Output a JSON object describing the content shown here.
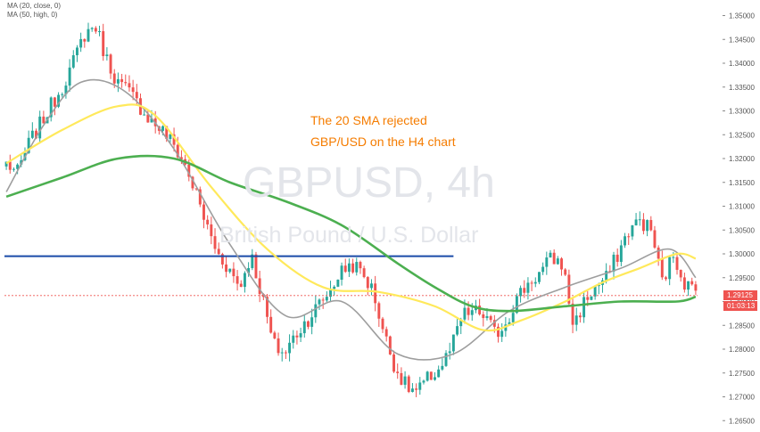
{
  "indicators": [
    "MA (20, close, 0)",
    "MA (50, high, 0)"
  ],
  "watermark": {
    "symbol": "GBPUSD, 4h",
    "name": "British Pound / U.S. Dollar"
  },
  "annotation": {
    "line1": "The 20 SMA rejected",
    "line2": "GBP/USD on the H4 chart"
  },
  "price_badge": {
    "price": "1.29125",
    "countdown": "01:03:13"
  },
  "chart_data": {
    "type": "candlestick",
    "title": "",
    "ylim": [
      1.262,
      1.352
    ],
    "y_ticks": [
      "1.35000",
      "1.34500",
      "1.34000",
      "1.33500",
      "1.33000",
      "1.32500",
      "1.32000",
      "1.31500",
      "1.31000",
      "1.30500",
      "1.30000",
      "1.29500",
      "1.29000",
      "1.28500",
      "1.28000",
      "1.27500",
      "1.27000",
      "1.26500"
    ],
    "y_tick_values": [
      1.35,
      1.345,
      1.34,
      1.335,
      1.33,
      1.325,
      1.32,
      1.315,
      1.31,
      1.305,
      1.3,
      1.295,
      1.29,
      1.285,
      1.28,
      1.275,
      1.27,
      1.265
    ],
    "anchors": [
      1.319,
      1.317,
      1.323,
      1.327,
      1.331,
      1.335,
      1.34,
      1.346,
      1.348,
      1.341,
      1.336,
      1.334,
      1.331,
      1.328,
      1.326,
      1.323,
      1.319,
      1.313,
      1.306,
      1.3,
      1.297,
      1.293,
      1.3,
      1.291,
      1.281,
      1.279,
      1.283,
      1.286,
      1.289,
      1.292,
      1.296,
      1.298,
      1.296,
      1.292,
      1.283,
      1.276,
      1.272,
      1.271,
      1.274,
      1.276,
      1.28,
      1.287,
      1.288,
      1.287,
      1.283,
      1.286,
      1.291,
      1.294,
      1.296,
      1.299,
      1.298,
      1.285,
      1.29,
      1.293,
      1.295,
      1.3,
      1.305,
      1.307,
      1.305,
      1.294,
      1.3,
      1.294,
      1.292
    ],
    "candle_count": 186,
    "seed": 7,
    "resistance_level": 1.2995,
    "price_line": 1.29125,
    "series": [
      {
        "name": "MA (20, close, 0)",
        "color": "#9e9e9e",
        "x": [
          0,
          10,
          20,
          32,
          45,
          60,
          75,
          90,
          105,
          120,
          135,
          150,
          165,
          178,
          186
        ],
        "values": [
          1.313,
          1.327,
          1.336,
          1.334,
          1.322,
          1.302,
          1.287,
          1.29,
          1.279,
          1.279,
          1.288,
          1.293,
          1.297,
          1.301,
          1.295
        ]
      },
      {
        "name": "MA (50, high, 0)",
        "color": "#ffe95b",
        "x": [
          0,
          15,
          30,
          40,
          55,
          70,
          85,
          100,
          115,
          128,
          138,
          150,
          160,
          170,
          180,
          186
        ],
        "values": [
          1.319,
          1.326,
          1.331,
          1.329,
          1.314,
          1.301,
          1.293,
          1.292,
          1.289,
          1.284,
          1.286,
          1.29,
          1.294,
          1.297,
          1.3,
          1.299
        ]
      },
      {
        "name": "",
        "color": "#4caf50",
        "x": [
          0,
          15,
          30,
          45,
          60,
          75,
          90,
          105,
          115,
          125,
          135,
          150,
          165,
          180,
          186
        ],
        "values": [
          1.312,
          1.316,
          1.32,
          1.32,
          1.315,
          1.311,
          1.306,
          1.298,
          1.293,
          1.289,
          1.288,
          1.289,
          1.29,
          1.29,
          1.291
        ]
      }
    ],
    "up_color": "#26a69a",
    "down_color": "#ef5350",
    "resistance_color": "#1a4aa8"
  }
}
